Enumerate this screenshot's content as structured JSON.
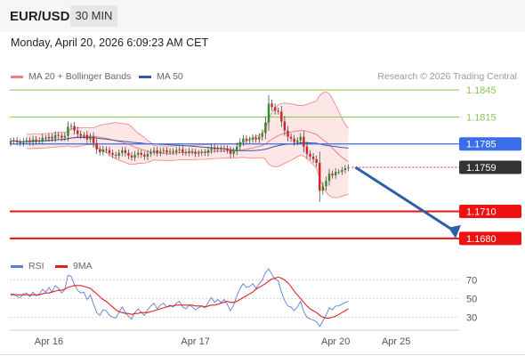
{
  "header": {
    "symbol": "EUR/USD",
    "timeframe": "30 MIN",
    "datetime": "Monday, April 20, 2026 6:09:23 AM CET"
  },
  "legend": {
    "bollinger_label": "MA 20 + Bollinger Bands",
    "ma50_label": "MA 50",
    "credit": "Research © 2026 Trading Central",
    "rsi_label": "RSI",
    "rsi_ma_label": "9MA"
  },
  "colors": {
    "bullish": "#2e8b2e",
    "bearish": "#d42020",
    "bollinger": "#f08080",
    "bollinger_fill": "#fde2e2",
    "ma50": "#3858a8",
    "pivot": "#3a6ee8",
    "support": "#ee1111",
    "resistance": "#8cc455",
    "last": "#333333",
    "arrow": "#2b5fa8",
    "rsi": "#5a7fd6",
    "rsi_ma": "#e02020"
  },
  "chart_data": [
    {
      "type": "candlestick",
      "title": "",
      "yrange": [
        1.1662,
        1.1858
      ],
      "x_tick_labels": [
        "Apr 16",
        "Apr 17",
        "Apr 20",
        "Apr 25"
      ],
      "levels": [
        {
          "kind": "resistance",
          "value": 1.1845,
          "label": "1.1845"
        },
        {
          "kind": "resistance",
          "value": 1.1815,
          "label": "1.1815"
        },
        {
          "kind": "pivot",
          "value": 1.1785,
          "label": "1.1785"
        },
        {
          "kind": "last",
          "value": 1.1759,
          "label": "1.1759"
        },
        {
          "kind": "support",
          "value": 1.171,
          "label": "1.1710"
        },
        {
          "kind": "support",
          "value": 1.168,
          "label": "1.1680"
        }
      ],
      "forecast": {
        "from": 1.1759,
        "to": 1.168
      },
      "close": [
        1.1788,
        1.1789,
        1.1787,
        1.1786,
        1.1788,
        1.1789,
        1.1787,
        1.179,
        1.1788,
        1.1789,
        1.1792,
        1.1791,
        1.1793,
        1.1791,
        1.1795,
        1.1794,
        1.1792,
        1.1794,
        1.1804,
        1.1805,
        1.18,
        1.1796,
        1.1794,
        1.1795,
        1.179,
        1.1793,
        1.1786,
        1.1779,
        1.1776,
        1.1779,
        1.1778,
        1.1775,
        1.1773,
        1.1772,
        1.1775,
        1.1778,
        1.1775,
        1.1772,
        1.177,
        1.1773,
        1.1775,
        1.1773,
        1.1771,
        1.1774,
        1.1776,
        1.1778,
        1.1775,
        1.1777,
        1.1778,
        1.1776,
        1.1777,
        1.1776,
        1.1778,
        1.1779,
        1.1776,
        1.1775,
        1.1777,
        1.1776,
        1.1774,
        1.1775,
        1.1776,
        1.1775,
        1.1778,
        1.1781,
        1.1779,
        1.178,
        1.1779,
        1.178,
        1.1778,
        1.1774,
        1.1777,
        1.1782,
        1.1787,
        1.1791,
        1.1789,
        1.179,
        1.1792,
        1.179,
        1.1793,
        1.1797,
        1.1809,
        1.183,
        1.1826,
        1.1822,
        1.1821,
        1.181,
        1.18,
        1.1793,
        1.1791,
        1.1787,
        1.1789,
        1.1793,
        1.1782,
        1.1774,
        1.1771,
        1.1768,
        1.1764,
        1.1733,
        1.1738,
        1.1744,
        1.1752,
        1.175,
        1.1754,
        1.1754,
        1.1756,
        1.1758,
        1.1759
      ],
      "x_tick_index": [
        12,
        58,
        102,
        121
      ]
    },
    {
      "type": "line",
      "title": "RSI",
      "ylim": [
        17,
        82
      ],
      "y_tick_labels": [
        "70",
        "50",
        "30"
      ],
      "series": [
        {
          "name": "RSI",
          "values": [
            53,
            55,
            52,
            51,
            55,
            56,
            52,
            57,
            53,
            55,
            60,
            57,
            62,
            57,
            64,
            61,
            56,
            60,
            75,
            74,
            65,
            59,
            56,
            57,
            49,
            54,
            44,
            35,
            32,
            38,
            37,
            32,
            30,
            29,
            35,
            41,
            35,
            31,
            28,
            35,
            39,
            35,
            32,
            38,
            42,
            45,
            39,
            43,
            45,
            41,
            43,
            41,
            45,
            47,
            41,
            39,
            43,
            41,
            38,
            40,
            42,
            40,
            46,
            51,
            46,
            49,
            46,
            49,
            44,
            37,
            43,
            53,
            61,
            66,
            62,
            63,
            66,
            61,
            66,
            70,
            78,
            82,
            76,
            71,
            69,
            57,
            48,
            42,
            41,
            37,
            41,
            47,
            36,
            30,
            28,
            27,
            25,
            20,
            26,
            32,
            40,
            38,
            42,
            42,
            44,
            46,
            47
          ]
        },
        {
          "name": "9MA",
          "values": [
            55,
            54,
            54,
            54,
            54,
            54,
            54,
            54,
            54,
            54,
            55,
            56,
            56,
            57,
            58,
            59,
            59,
            60,
            62,
            63,
            64,
            64,
            64,
            63,
            62,
            61,
            58,
            55,
            52,
            49,
            47,
            44,
            41,
            38,
            36,
            35,
            34,
            34,
            33,
            34,
            34,
            35,
            35,
            35,
            36,
            37,
            38,
            39,
            40,
            41,
            42,
            42,
            43,
            43,
            43,
            43,
            43,
            43,
            42,
            42,
            42,
            41,
            42,
            43,
            43,
            44,
            45,
            46,
            47,
            46,
            46,
            47,
            49,
            51,
            53,
            55,
            57,
            60,
            62,
            64,
            66,
            69,
            71,
            72,
            73,
            72,
            70,
            67,
            63,
            58,
            54,
            50,
            46,
            42,
            39,
            37,
            35,
            32,
            30,
            29,
            29,
            30,
            31,
            33,
            35,
            37,
            39
          ]
        }
      ]
    }
  ]
}
